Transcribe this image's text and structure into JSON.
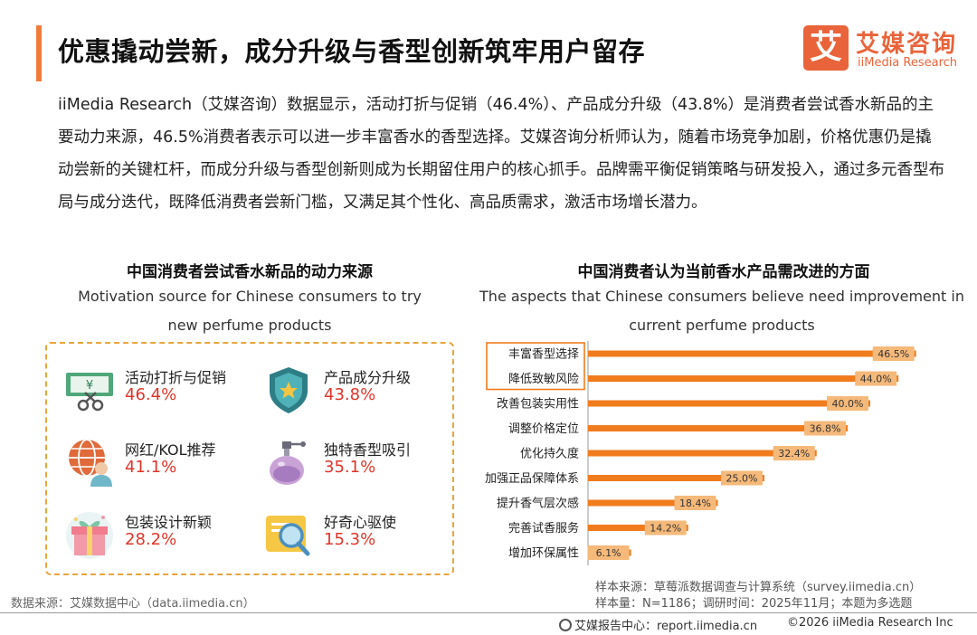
{
  "title": "优惠撬动尝新，成分升级与香型创新筑牢用户留存",
  "logo": {
    "cn": "艾媒咨询",
    "en": "iiMedia Research",
    "mark": "艾"
  },
  "summary": "iiMedia Research（艾媒咨询）数据显示，活动打折与促销（46.4%）、产品成分升级（43.8%）是消费者尝试香水新品的主要动力来源，46.5%消费者表示可以进一步丰富香水的香型选择。艾媒咨询分析师认为，随着市场竞争加剧，价格优惠仍是撬动尝新的关键杠杆，而成分升级与香型创新则成为长期留住用户的核心抓手。品牌需平衡促销策略与研发投入，通过多元香型布局与成分迭代，既降低消费者尝新门槛，又满足其个性化、高品质需求，激活市场增长潜力。",
  "left_section": {
    "title_cn": "中国消费者尝试香水新品的动力来源",
    "title_en": "Motivation source for Chinese consumers to try new perfume products",
    "items": [
      {
        "label": "活动打折与促销",
        "value": "46.4%",
        "icon": "discount-coupon-icon"
      },
      {
        "label": "产品成分升级",
        "value": "43.8%",
        "icon": "shield-star-icon"
      },
      {
        "label": "网红/KOL推荐",
        "value": "41.1%",
        "icon": "globe-person-icon"
      },
      {
        "label": "独特香型吸引",
        "value": "35.1%",
        "icon": "perfume-bottle-icon"
      },
      {
        "label": "包装设计新颖",
        "value": "28.2%",
        "icon": "gift-box-icon"
      },
      {
        "label": "好奇心驱使",
        "value": "15.3%",
        "icon": "magnifier-icon"
      }
    ]
  },
  "chart_data": {
    "type": "bar",
    "orientation": "horizontal",
    "title": "中国消费者认为当前香水产品需改进的方面",
    "subtitle": "The aspects that Chinese consumers believe need improvement in current perfume products",
    "categories": [
      "丰富香型选择",
      "降低致敏风险",
      "改善包装实用性",
      "调整价格定位",
      "优化持久度",
      "加强正品保障体系",
      "提升香气层次感",
      "完善试香服务",
      "增加环保属性"
    ],
    "values": [
      46.5,
      44.0,
      40.0,
      36.8,
      32.4,
      25.0,
      18.4,
      14.2,
      6.1
    ],
    "value_labels": [
      "46.5%",
      "44.0%",
      "40.0%",
      "36.8%",
      "32.4%",
      "25.0%",
      "18.4%",
      "14.2%",
      "6.1%"
    ],
    "unit": "%",
    "xlim": [
      0,
      50
    ],
    "highlighted_categories": [
      "丰富香型选择",
      "降低致敏风险"
    ],
    "bar_color": "#F07C1E",
    "label_bg_color": "#F5B97A",
    "highlight_border_color": "#F07C1E"
  },
  "notes": {
    "source_left": "数据来源：艾媒数据中心（data.iimedia.cn）",
    "source_right": "样本来源：草莓派数据调查与计算系统（survey.iimedia.cn）",
    "sample": "样本量：N=1186；调研时间：2025年11月；本题为多选题"
  },
  "footer": {
    "left": "艾媒报告中心：report.iimedia.cn",
    "right": "©2026  iiMedia Research  Inc"
  }
}
